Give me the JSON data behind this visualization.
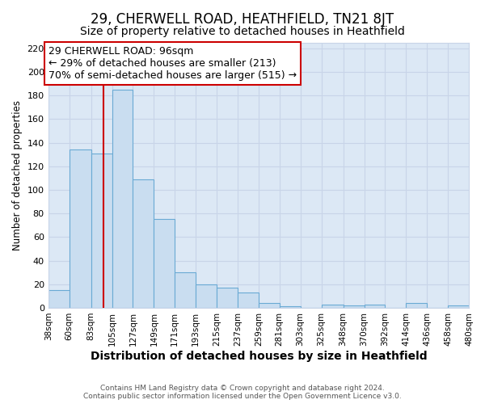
{
  "title": "29, CHERWELL ROAD, HEATHFIELD, TN21 8JT",
  "subtitle": "Size of property relative to detached houses in Heathfield",
  "xlabel": "Distribution of detached houses by size in Heathfield",
  "ylabel": "Number of detached properties",
  "bar_edges": [
    38,
    60,
    83,
    105,
    127,
    149,
    171,
    193,
    215,
    237,
    259,
    281,
    303,
    325,
    348,
    370,
    392,
    414,
    436,
    458,
    480
  ],
  "bar_heights": [
    15,
    134,
    131,
    185,
    109,
    75,
    30,
    20,
    17,
    13,
    4,
    1,
    0,
    3,
    2,
    3,
    0,
    4,
    0,
    2
  ],
  "bar_color": "#c9ddf0",
  "bar_edge_color": "#6aaad4",
  "reference_line_x": 96,
  "reference_line_color": "#cc0000",
  "annotation_text": "29 CHERWELL ROAD: 96sqm\n← 29% of detached houses are smaller (213)\n70% of semi-detached houses are larger (515) →",
  "annotation_box_color": "#ffffff",
  "annotation_box_edge_color": "#cc0000",
  "ylim": [
    0,
    225
  ],
  "yticks": [
    0,
    20,
    40,
    60,
    80,
    100,
    120,
    140,
    160,
    180,
    200,
    220
  ],
  "xtick_labels": [
    "38sqm",
    "60sqm",
    "83sqm",
    "105sqm",
    "127sqm",
    "149sqm",
    "171sqm",
    "193sqm",
    "215sqm",
    "237sqm",
    "259sqm",
    "281sqm",
    "303sqm",
    "325sqm",
    "348sqm",
    "370sqm",
    "392sqm",
    "414sqm",
    "436sqm",
    "458sqm",
    "480sqm"
  ],
  "grid_color": "#c8d4e8",
  "plot_bg_color": "#dce8f5",
  "figure_bg_color": "#ffffff",
  "footer_text": "Contains HM Land Registry data © Crown copyright and database right 2024.\nContains public sector information licensed under the Open Government Licence v3.0.",
  "title_fontsize": 12,
  "subtitle_fontsize": 10,
  "xlabel_fontsize": 10,
  "ylabel_fontsize": 8.5,
  "annotation_fontsize": 9,
  "xtick_fontsize": 7.5,
  "ytick_fontsize": 8
}
